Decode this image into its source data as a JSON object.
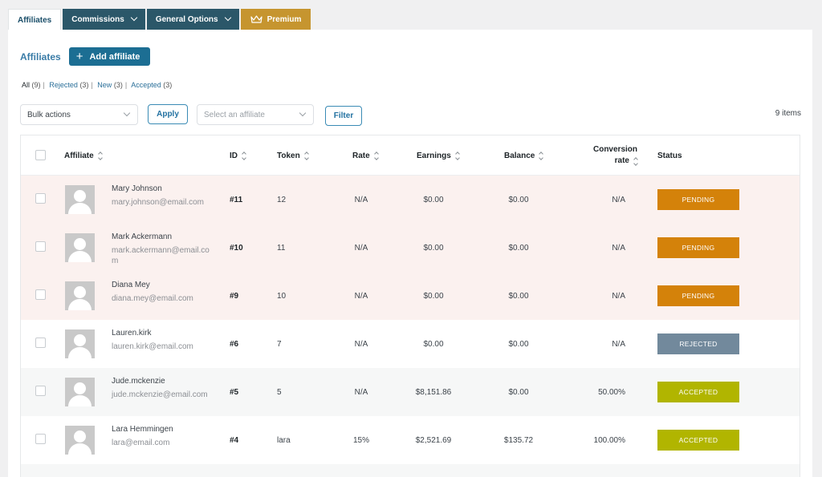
{
  "tabs": [
    {
      "label": "Affiliates",
      "active": true
    },
    {
      "label": "Commissions"
    },
    {
      "label": "General Options"
    },
    {
      "label": "Premium"
    }
  ],
  "header": {
    "title": "Affiliates",
    "add_label": "Add affiliate"
  },
  "filters": [
    {
      "label": "All",
      "count": "(9)"
    },
    {
      "label": "Rejected",
      "count": "(3)"
    },
    {
      "label": "New",
      "count": "(3)"
    },
    {
      "label": "Accepted",
      "count": "(3)"
    }
  ],
  "toolbar": {
    "bulk_actions": "Bulk actions",
    "apply_label": "Apply",
    "affiliate_placeholder": "Select an affiliate",
    "filter_label": "Filter",
    "items_count": "9 items"
  },
  "columns": {
    "affiliate": "Affiliate",
    "id": "ID",
    "token": "Token",
    "rate": "Rate",
    "earnings": "Earnings",
    "balance": "Balance",
    "conversion_line1": "Conversion",
    "conversion_line2": "rate",
    "status": "Status"
  },
  "colors": {
    "pending": "#d4820a",
    "rejected": "#72899c",
    "accepted": "#b1b500",
    "primary": "#1c6e93",
    "premium": "#c6952f"
  },
  "rows": [
    {
      "name": "Mary Johnson",
      "email": "mary.johnson@email.com",
      "id": "#11",
      "token": "12",
      "rate": "N/A",
      "earnings": "$0.00",
      "balance": "$0.00",
      "conversion": "N/A",
      "status": "PENDING"
    },
    {
      "name": "Mark Ackermann",
      "email": "mark.ackermann@email.com",
      "id": "#10",
      "token": "11",
      "rate": "N/A",
      "earnings": "$0.00",
      "balance": "$0.00",
      "conversion": "N/A",
      "status": "PENDING"
    },
    {
      "name": "Diana Mey",
      "email": "diana.mey@email.com",
      "id": "#9",
      "token": "10",
      "rate": "N/A",
      "earnings": "$0.00",
      "balance": "$0.00",
      "conversion": "N/A",
      "status": "PENDING"
    },
    {
      "name": "Lauren.kirk",
      "email": "lauren.kirk@email.com",
      "id": "#6",
      "token": "7",
      "rate": "N/A",
      "earnings": "$0.00",
      "balance": "$0.00",
      "conversion": "N/A",
      "status": "REJECTED"
    },
    {
      "name": "Jude.mckenzie",
      "email": "jude.mckenzie@email.com",
      "id": "#5",
      "token": "5",
      "rate": "N/A",
      "earnings": "$8,151.86",
      "balance": "$0.00",
      "conversion": "50.00%",
      "status": "ACCEPTED"
    },
    {
      "name": "Lara Hemmingen",
      "email": "lara@email.com",
      "id": "#4",
      "token": "lara",
      "rate": "15%",
      "earnings": "$2,521.69",
      "balance": "$135.72",
      "conversion": "100.00%",
      "status": "ACCEPTED"
    }
  ]
}
